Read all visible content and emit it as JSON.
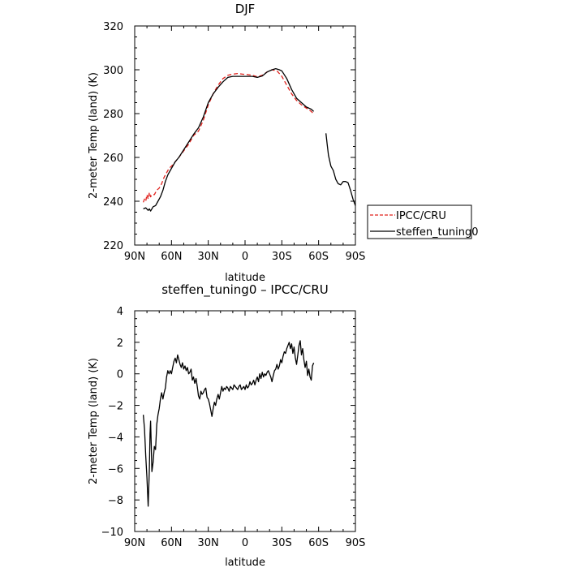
{
  "chart_data": [
    {
      "type": "line",
      "title": "DJF",
      "xlabel": "latitude",
      "ylabel": "2-meter Temp (land) (K)",
      "xlim": [
        90,
        -90
      ],
      "ylim": [
        220,
        320
      ],
      "x_ticks": [
        90,
        60,
        30,
        0,
        -30,
        -60,
        -90
      ],
      "x_tick_labels": [
        "90N",
        "60N",
        "30N",
        "0",
        "30S",
        "60S",
        "90S"
      ],
      "y_ticks": [
        220,
        240,
        260,
        280,
        300,
        320
      ],
      "y_tick_labels": [
        "220",
        "240",
        "260",
        "280",
        "300",
        "320"
      ],
      "grid": false,
      "legend_position": "right",
      "series": [
        {
          "name": "IPCC/CRU",
          "color": "#e0201b",
          "dash": "dashed",
          "x": [
            83,
            82,
            81,
            80,
            79,
            78,
            77,
            76,
            74,
            72,
            70,
            68,
            66,
            64,
            62,
            60,
            57,
            54,
            50,
            46,
            42,
            38,
            34,
            30,
            26,
            22,
            18,
            14,
            10,
            6,
            2,
            -2,
            -6,
            -10,
            -14,
            -18,
            -22,
            -26,
            -30,
            -34,
            -38,
            -42,
            -46,
            -50,
            -54,
            -56
          ],
          "y": [
            239.5,
            241,
            240,
            243,
            241,
            244,
            242,
            243,
            243,
            245,
            246,
            248,
            251,
            253,
            255,
            256,
            258,
            260,
            263,
            266,
            270,
            272,
            277,
            284,
            289,
            293,
            296,
            297.5,
            298,
            298.3,
            298,
            297.8,
            297.5,
            296.8,
            297.5,
            299,
            300,
            299.5,
            297,
            293,
            289,
            286,
            284,
            282.5,
            281,
            279.8
          ]
        },
        {
          "name": "steffen_tuning0",
          "color": "#000000",
          "dash": "solid",
          "x": [
            83,
            81,
            79,
            78,
            77,
            75,
            73,
            71,
            69,
            67,
            65,
            63,
            60,
            57,
            54,
            50,
            46,
            42,
            38,
            34,
            30,
            26,
            22,
            18,
            14,
            10,
            6,
            2,
            -2,
            -6,
            -10,
            -14,
            -18,
            -22,
            -25,
            -28,
            -30,
            -34,
            -38,
            -42,
            -46,
            -50,
            -54,
            -56,
            null,
            -66,
            -67,
            -68,
            -70,
            -72,
            -74,
            -76,
            -78,
            -80,
            -82,
            -84,
            -86,
            -88,
            -90
          ],
          "y": [
            236.5,
            237,
            235.8,
            236.5,
            235.5,
            237.5,
            238,
            240,
            242,
            245,
            249,
            252,
            255,
            258,
            260,
            263.5,
            267,
            270.5,
            273.5,
            278.5,
            285,
            289,
            292,
            294.5,
            296.5,
            297,
            297,
            297,
            297,
            297,
            296.5,
            297.2,
            299,
            300,
            300.5,
            300,
            299.5,
            296,
            291,
            287,
            285,
            283,
            282,
            281,
            null,
            271,
            266,
            261,
            256,
            254,
            250,
            248,
            247.5,
            249,
            249,
            248.5,
            245,
            241,
            238
          ]
        }
      ]
    },
    {
      "type": "line",
      "title": "steffen_tuning0 – IPCC/CRU",
      "xlabel": "latitude",
      "ylabel": "2-meter Temp (land) (K)",
      "xlim": [
        90,
        -90
      ],
      "ylim": [
        -10,
        4
      ],
      "x_ticks": [
        90,
        60,
        30,
        0,
        -30,
        -60,
        -90
      ],
      "x_tick_labels": [
        "90N",
        "60N",
        "30N",
        "0",
        "30S",
        "60S",
        "90S"
      ],
      "y_ticks": [
        -10,
        -8,
        -6,
        -4,
        -2,
        0,
        2,
        4
      ],
      "y_tick_labels": [
        "−10",
        "−8",
        "−6",
        "−4",
        "−2",
        "0",
        "2",
        "4"
      ],
      "grid": false,
      "series": [
        {
          "name": "",
          "color": "#000000",
          "dash": "solid",
          "x": [
            83,
            82,
            81,
            80,
            79,
            78,
            77.5,
            77,
            76.5,
            76,
            75,
            74,
            73,
            72,
            71,
            70,
            69,
            68,
            67,
            66,
            65,
            64,
            63,
            62,
            61,
            60,
            59,
            58,
            57,
            56,
            55,
            54,
            53,
            52,
            51,
            50,
            49,
            48,
            47,
            46,
            45,
            44,
            43,
            42,
            41,
            40,
            39,
            38,
            37,
            36,
            35,
            34,
            33,
            32,
            31,
            30,
            29,
            28,
            27,
            26,
            25,
            24,
            23,
            22,
            21,
            20,
            19,
            18,
            17,
            16,
            15,
            14,
            13,
            12,
            11,
            10,
            9,
            8,
            7,
            6,
            5,
            4,
            3,
            2,
            1,
            0,
            -1,
            -2,
            -3,
            -4,
            -5,
            -6,
            -7,
            -8,
            -9,
            -10,
            -11,
            -12,
            -13,
            -14,
            -15,
            -16,
            -17,
            -18,
            -19,
            -20,
            -21,
            -22,
            -23,
            -24,
            -25,
            -26,
            -27,
            -28,
            -29,
            -30,
            -31,
            -32,
            -33,
            -34,
            -35,
            -36,
            -37,
            -38,
            -39,
            -40,
            -41,
            -42,
            -43,
            -44,
            -45,
            -46,
            -47,
            -48,
            -49,
            -50,
            -51,
            -52,
            -53,
            -54,
            -55,
            -56
          ],
          "y": [
            -2.6,
            -3.5,
            -5.2,
            -6.6,
            -8.4,
            -6,
            -3.8,
            -3,
            -4.5,
            -6.2,
            -5.6,
            -4.6,
            -4.8,
            -3.2,
            -2.6,
            -2.2,
            -1.6,
            -1.2,
            -1.6,
            -1.2,
            -0.9,
            -0.2,
            0.2,
            0,
            0.2,
            0,
            0.4,
            0.8,
            1,
            0.7,
            1.2,
            0.9,
            0.6,
            0.4,
            0.7,
            0.3,
            0.5,
            0.2,
            0.4,
            0,
            0.1,
            0.3,
            -0.4,
            -0.2,
            -0.6,
            -0.3,
            -0.8,
            -1.4,
            -1.6,
            -1.1,
            -1.3,
            -1.2,
            -1,
            -0.9,
            -1.5,
            -1.6,
            -1.9,
            -2.3,
            -2.7,
            -2.2,
            -1.8,
            -2,
            -1.6,
            -1.3,
            -1.6,
            -1.2,
            -0.8,
            -1.1,
            -0.9,
            -1,
            -0.8,
            -0.9,
            -1.1,
            -0.8,
            -0.9,
            -1,
            -0.7,
            -0.8,
            -0.9,
            -1,
            -0.8,
            -0.7,
            -1,
            -0.9,
            -0.8,
            -1,
            -0.7,
            -0.9,
            -0.8,
            -0.5,
            -0.7,
            -0.6,
            -0.4,
            -0.7,
            -0.4,
            -0.2,
            -0.5,
            0,
            -0.3,
            0.1,
            -0.2,
            0,
            -0.1,
            0.1,
            0.2,
            0,
            -0.2,
            -0.5,
            -0.1,
            0.2,
            0.3,
            0.6,
            0.3,
            0.5,
            0.9,
            0.7,
            1.1,
            1.4,
            1.3,
            1.6,
            1.8,
            2,
            1.6,
            1.9,
            1.3,
            1.7,
            1,
            0.6,
            1.2,
            1.8,
            2.1,
            1.2,
            1.6,
            0.9,
            0.4,
            0.8,
            -0.1,
            0.3,
            -0.2,
            -0.4,
            0.5,
            0.7
          ]
        }
      ]
    }
  ]
}
